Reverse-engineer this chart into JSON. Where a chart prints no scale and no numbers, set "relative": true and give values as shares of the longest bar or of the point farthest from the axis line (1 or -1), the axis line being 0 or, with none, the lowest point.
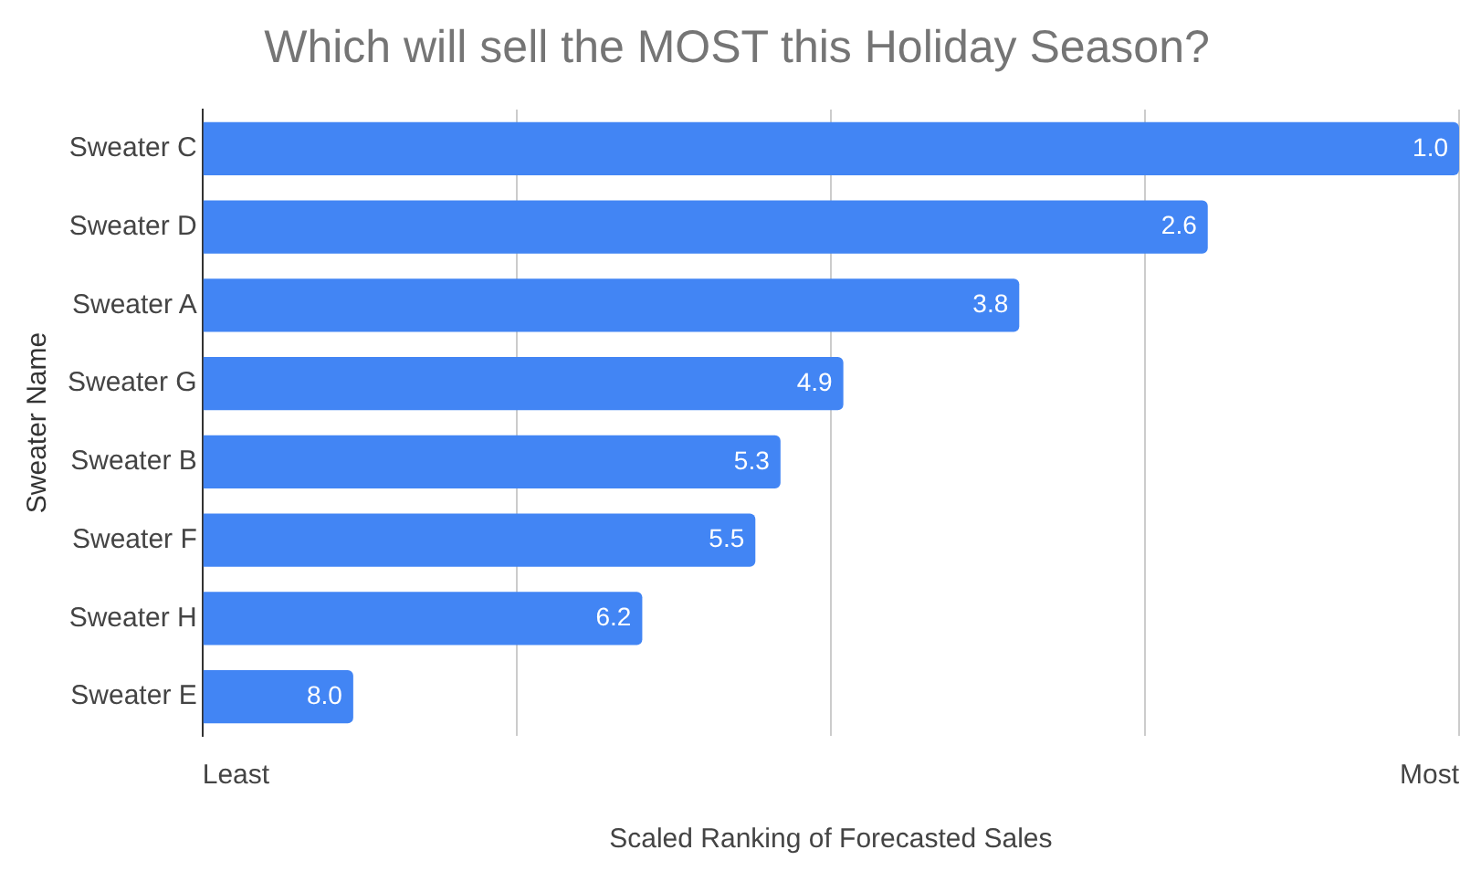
{
  "chart_data": {
    "type": "bar",
    "orientation": "horizontal",
    "relative": true,
    "title": "Which will sell the MOST this Holiday Season?",
    "xlabel": "Scaled Ranking of Forecasted Sales",
    "ylabel": "Sweater Name",
    "categories": [
      "Sweater C",
      "Sweater D",
      "Sweater A",
      "Sweater G",
      "Sweater B",
      "Sweater F",
      "Sweater H",
      "Sweater E"
    ],
    "values": [
      1,
      0.8,
      0.65,
      0.51,
      0.46,
      0.44,
      0.35,
      0.12
    ],
    "color": "#4285f4",
    "annotations": [
      {
        "text": "1.0",
        "y": "Sweater C"
      },
      {
        "text": "2.6",
        "y": "Sweater D"
      },
      {
        "text": "3.8",
        "y": "Sweater A"
      },
      {
        "text": "4.9",
        "y": "Sweater G"
      },
      {
        "text": "5.3",
        "y": "Sweater B"
      },
      {
        "text": "5.5",
        "y": "Sweater F"
      },
      {
        "text": "6.2",
        "y": "Sweater H"
      },
      {
        "text": "8.0",
        "y": "Sweater E"
      },
      "Least",
      "Most"
    ],
    "grid": "x",
    "legend": false
  }
}
